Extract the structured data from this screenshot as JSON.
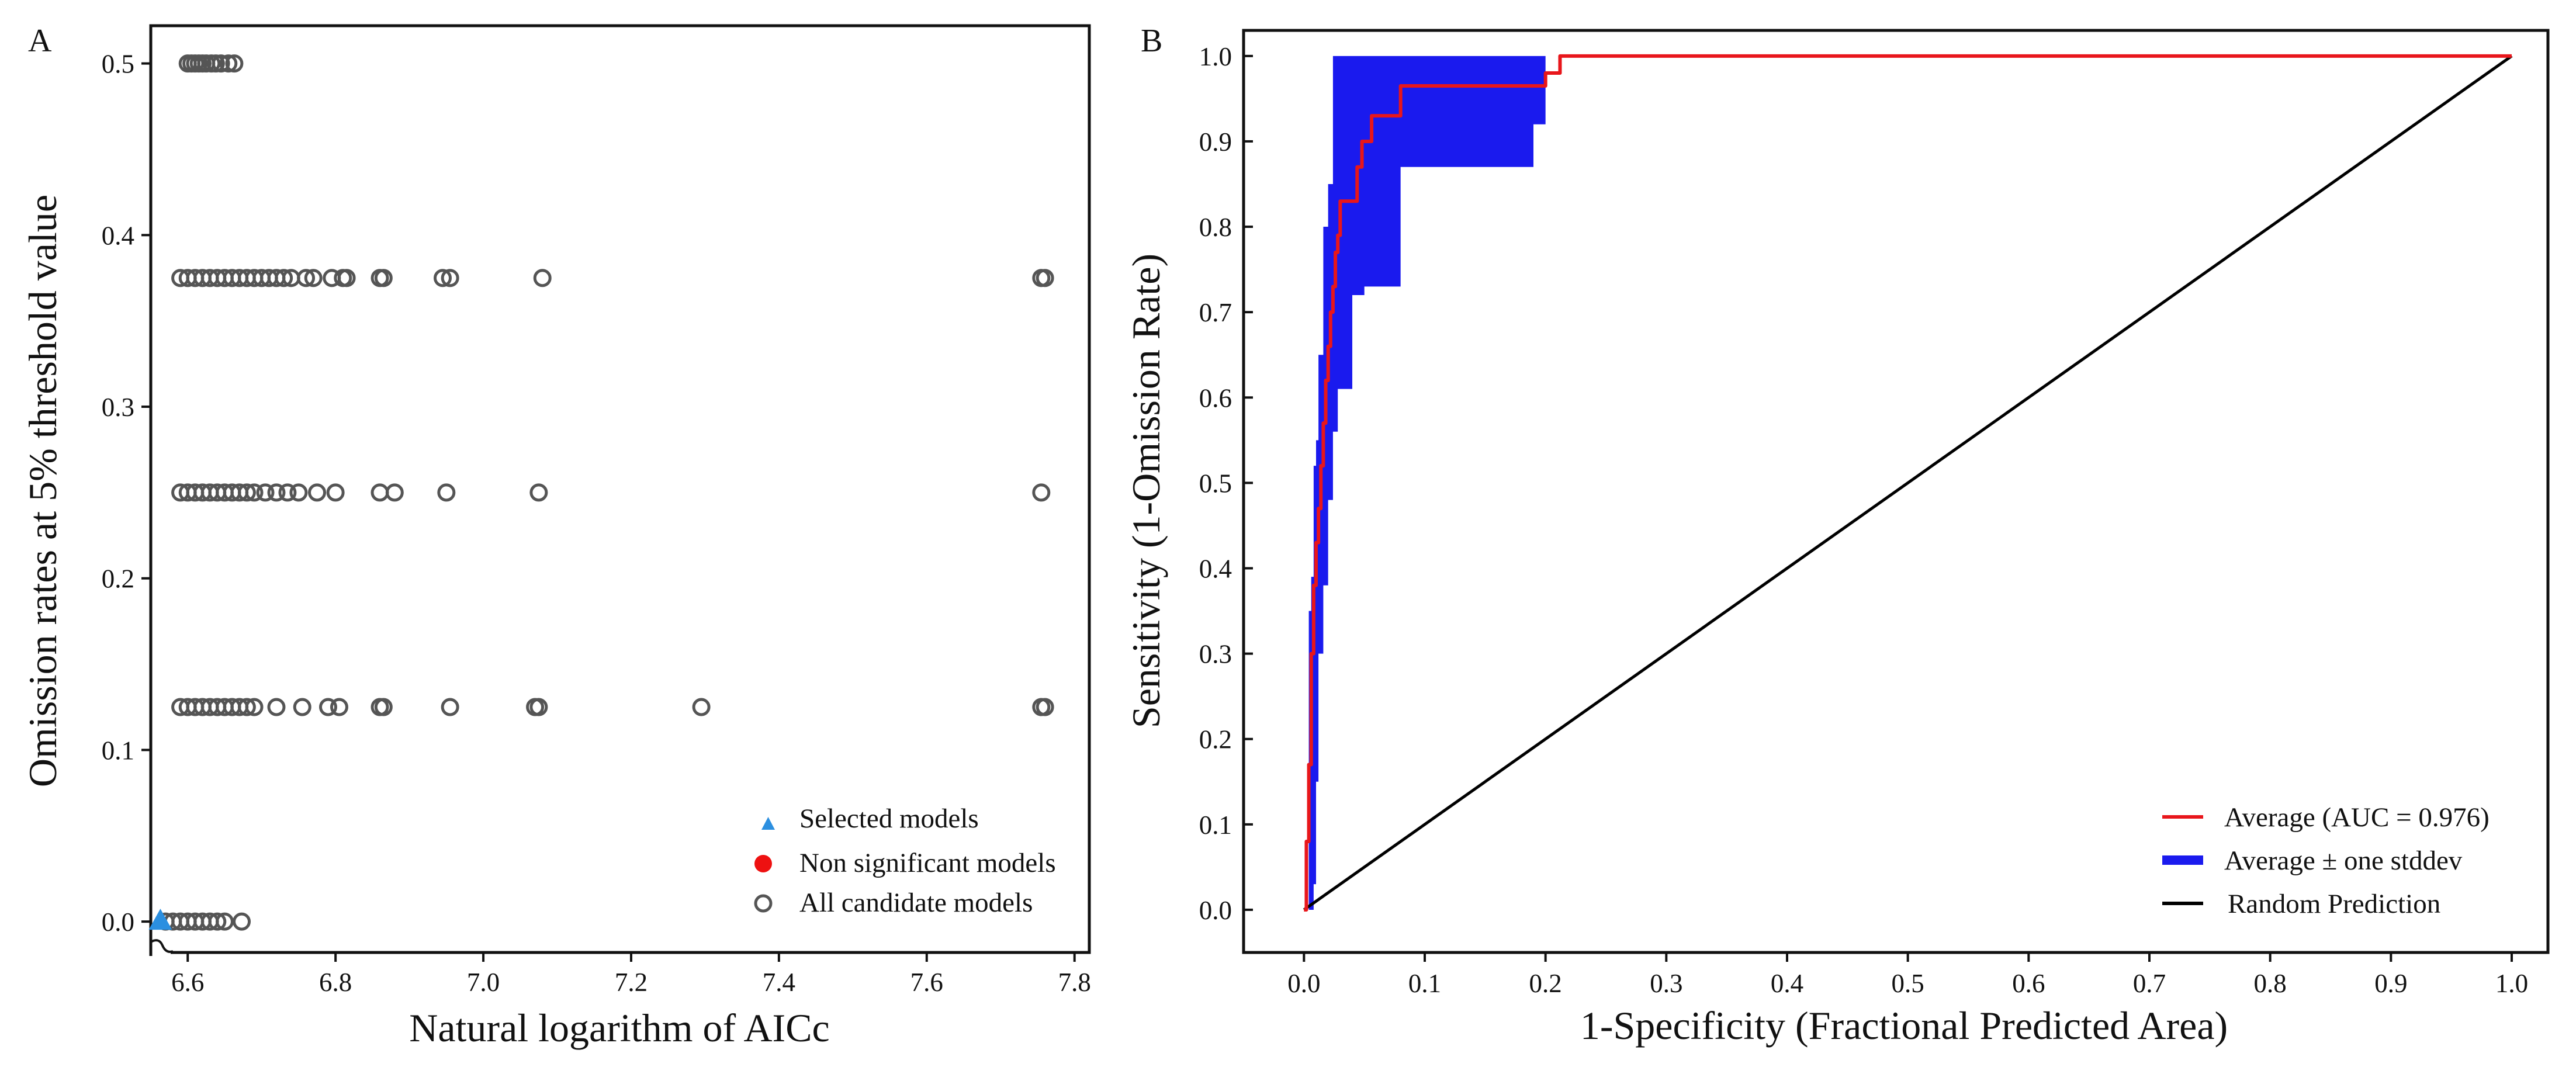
{
  "chart_data": [
    {
      "type": "scatter",
      "panel_label": "A",
      "title": "",
      "xlabel": "Natural logarithm of AICc",
      "ylabel": "Omission rates at 5% threshold value",
      "xlim": [
        6.55,
        7.82
      ],
      "ylim": [
        -0.018,
        0.522
      ],
      "xticks": [
        "6.6",
        "6.8",
        "7.0",
        "7.2",
        "7.4",
        "7.6",
        "7.8"
      ],
      "yticks": [
        "0.0",
        "0.1",
        "0.2",
        "0.3",
        "0.4",
        "0.5"
      ],
      "grid": false,
      "legend_position": "bottom-right",
      "legend": [
        {
          "label": "Selected models",
          "marker": "triangle",
          "color": "#2b8fe0"
        },
        {
          "label": "Non significant models",
          "marker": "filled-circle",
          "color": "#ee1111"
        },
        {
          "label": "All candidate models",
          "marker": "open-circle",
          "color": "#555555"
        }
      ],
      "series": [
        {
          "name": "All candidate models",
          "points": [
            {
              "x": 6.6,
              "y": 0.5
            },
            {
              "x": 6.605,
              "y": 0.5
            },
            {
              "x": 6.61,
              "y": 0.5
            },
            {
              "x": 6.615,
              "y": 0.5
            },
            {
              "x": 6.62,
              "y": 0.5
            },
            {
              "x": 6.625,
              "y": 0.5
            },
            {
              "x": 6.632,
              "y": 0.5
            },
            {
              "x": 6.638,
              "y": 0.5
            },
            {
              "x": 6.645,
              "y": 0.5
            },
            {
              "x": 6.655,
              "y": 0.5
            },
            {
              "x": 6.663,
              "y": 0.5
            },
            {
              "x": 6.59,
              "y": 0.375
            },
            {
              "x": 6.6,
              "y": 0.375
            },
            {
              "x": 6.61,
              "y": 0.375
            },
            {
              "x": 6.62,
              "y": 0.375
            },
            {
              "x": 6.63,
              "y": 0.375
            },
            {
              "x": 6.64,
              "y": 0.375
            },
            {
              "x": 6.65,
              "y": 0.375
            },
            {
              "x": 6.66,
              "y": 0.375
            },
            {
              "x": 6.67,
              "y": 0.375
            },
            {
              "x": 6.68,
              "y": 0.375
            },
            {
              "x": 6.69,
              "y": 0.375
            },
            {
              "x": 6.7,
              "y": 0.375
            },
            {
              "x": 6.71,
              "y": 0.375
            },
            {
              "x": 6.72,
              "y": 0.375
            },
            {
              "x": 6.73,
              "y": 0.375
            },
            {
              "x": 6.74,
              "y": 0.375
            },
            {
              "x": 6.76,
              "y": 0.375
            },
            {
              "x": 6.77,
              "y": 0.375
            },
            {
              "x": 6.795,
              "y": 0.375
            },
            {
              "x": 6.81,
              "y": 0.375
            },
            {
              "x": 6.815,
              "y": 0.375
            },
            {
              "x": 6.86,
              "y": 0.375
            },
            {
              "x": 6.865,
              "y": 0.375
            },
            {
              "x": 6.945,
              "y": 0.375
            },
            {
              "x": 6.955,
              "y": 0.375
            },
            {
              "x": 7.08,
              "y": 0.375
            },
            {
              "x": 7.755,
              "y": 0.375
            },
            {
              "x": 7.76,
              "y": 0.375
            },
            {
              "x": 6.59,
              "y": 0.25
            },
            {
              "x": 6.6,
              "y": 0.25
            },
            {
              "x": 6.61,
              "y": 0.25
            },
            {
              "x": 6.62,
              "y": 0.25
            },
            {
              "x": 6.63,
              "y": 0.25
            },
            {
              "x": 6.64,
              "y": 0.25
            },
            {
              "x": 6.65,
              "y": 0.25
            },
            {
              "x": 6.66,
              "y": 0.25
            },
            {
              "x": 6.67,
              "y": 0.25
            },
            {
              "x": 6.68,
              "y": 0.25
            },
            {
              "x": 6.69,
              "y": 0.25
            },
            {
              "x": 6.705,
              "y": 0.25
            },
            {
              "x": 6.72,
              "y": 0.25
            },
            {
              "x": 6.735,
              "y": 0.25
            },
            {
              "x": 6.75,
              "y": 0.25
            },
            {
              "x": 6.775,
              "y": 0.25
            },
            {
              "x": 6.8,
              "y": 0.25
            },
            {
              "x": 6.86,
              "y": 0.25
            },
            {
              "x": 6.88,
              "y": 0.25
            },
            {
              "x": 6.95,
              "y": 0.25
            },
            {
              "x": 7.075,
              "y": 0.25
            },
            {
              "x": 7.755,
              "y": 0.25
            },
            {
              "x": 6.59,
              "y": 0.125
            },
            {
              "x": 6.6,
              "y": 0.125
            },
            {
              "x": 6.61,
              "y": 0.125
            },
            {
              "x": 6.62,
              "y": 0.125
            },
            {
              "x": 6.63,
              "y": 0.125
            },
            {
              "x": 6.64,
              "y": 0.125
            },
            {
              "x": 6.65,
              "y": 0.125
            },
            {
              "x": 6.66,
              "y": 0.125
            },
            {
              "x": 6.67,
              "y": 0.125
            },
            {
              "x": 6.68,
              "y": 0.125
            },
            {
              "x": 6.69,
              "y": 0.125
            },
            {
              "x": 6.72,
              "y": 0.125
            },
            {
              "x": 6.755,
              "y": 0.125
            },
            {
              "x": 6.79,
              "y": 0.125
            },
            {
              "x": 6.805,
              "y": 0.125
            },
            {
              "x": 6.86,
              "y": 0.125
            },
            {
              "x": 6.865,
              "y": 0.125
            },
            {
              "x": 6.955,
              "y": 0.125
            },
            {
              "x": 7.07,
              "y": 0.125
            },
            {
              "x": 7.075,
              "y": 0.125
            },
            {
              "x": 7.295,
              "y": 0.125
            },
            {
              "x": 7.755,
              "y": 0.125
            },
            {
              "x": 7.76,
              "y": 0.125
            },
            {
              "x": 6.57,
              "y": 0.0
            },
            {
              "x": 6.58,
              "y": 0.0
            },
            {
              "x": 6.59,
              "y": 0.0
            },
            {
              "x": 6.6,
              "y": 0.0
            },
            {
              "x": 6.61,
              "y": 0.0
            },
            {
              "x": 6.62,
              "y": 0.0
            },
            {
              "x": 6.63,
              "y": 0.0
            },
            {
              "x": 6.64,
              "y": 0.0
            },
            {
              "x": 6.65,
              "y": 0.0
            },
            {
              "x": 6.673,
              "y": 0.0
            }
          ]
        },
        {
          "name": "Selected models",
          "points": [
            {
              "x": 6.563,
              "y": 0.0
            }
          ]
        },
        {
          "name": "Non significant models",
          "points": []
        }
      ]
    },
    {
      "type": "line",
      "panel_label": "B",
      "title": "",
      "xlabel": "1-Specificity (Fractional Predicted Area)",
      "ylabel": "Sensitivity  (1-Omission Rate)",
      "xlim": [
        -0.05,
        1.03
      ],
      "ylim": [
        -0.05,
        1.03
      ],
      "xticks": [
        "0.0",
        "0.1",
        "0.2",
        "0.3",
        "0.4",
        "0.5",
        "0.6",
        "0.7",
        "0.8",
        "0.9",
        "1.0"
      ],
      "yticks": [
        "0.0",
        "0.1",
        "0.2",
        "0.3",
        "0.4",
        "0.5",
        "0.6",
        "0.7",
        "0.8",
        "0.9",
        "1.0"
      ],
      "grid": false,
      "legend_position": "bottom-right",
      "legend": [
        {
          "label": "Average (AUC = 0.976)",
          "color": "#e8161b"
        },
        {
          "label": "Average ± one stddev",
          "color": "#1a1aee"
        },
        {
          "label": "Random Prediction",
          "color": "#000000"
        }
      ],
      "series": [
        {
          "name": "Average (AUC = 0.976)",
          "x": [
            0.0,
            0.002,
            0.004,
            0.006,
            0.008,
            0.01,
            0.012,
            0.014,
            0.016,
            0.018,
            0.02,
            0.022,
            0.024,
            0.026,
            0.028,
            0.03,
            0.033,
            0.036,
            0.04,
            0.044,
            0.048,
            0.05,
            0.052,
            0.056,
            0.06,
            0.064,
            0.066,
            0.07,
            0.076,
            0.08,
            0.084,
            0.09,
            0.15,
            0.19,
            0.2,
            0.212,
            0.22,
            0.3,
            0.5,
            0.8,
            1.0
          ],
          "y": [
            0.0,
            0.08,
            0.17,
            0.3,
            0.38,
            0.43,
            0.47,
            0.52,
            0.57,
            0.62,
            0.66,
            0.7,
            0.73,
            0.77,
            0.79,
            0.83,
            0.83,
            0.83,
            0.83,
            0.87,
            0.9,
            0.9,
            0.9,
            0.93,
            0.93,
            0.93,
            0.93,
            0.93,
            0.93,
            0.965,
            0.965,
            0.965,
            0.965,
            0.965,
            0.98,
            1.0,
            1.0,
            1.0,
            1.0,
            1.0,
            1.0
          ]
        },
        {
          "name": "Average ± one stddev",
          "x": [
            0.0,
            0.004,
            0.006,
            0.008,
            0.01,
            0.012,
            0.016,
            0.02,
            0.024,
            0.028,
            0.032,
            0.04,
            0.05,
            0.06,
            0.07,
            0.08,
            0.081,
            0.1,
            0.15,
            0.19,
            0.2,
            0.212
          ],
          "upper": [
            0.0,
            0.35,
            0.39,
            0.52,
            0.55,
            0.65,
            0.8,
            0.85,
            1.0,
            1.0,
            1.0,
            1.0,
            1.0,
            1.0,
            1.0,
            1.0,
            1.0,
            1.0,
            1.0,
            1.0,
            1.0,
            1.0
          ],
          "lower": [
            0.0,
            0.0,
            0.0,
            0.0,
            0.03,
            0.15,
            0.3,
            0.38,
            0.48,
            0.56,
            0.61,
            0.61,
            0.72,
            0.73,
            0.73,
            0.73,
            0.87,
            0.87,
            0.87,
            0.87,
            0.92,
            1.0
          ]
        },
        {
          "name": "Random Prediction",
          "x": [
            0.0,
            1.0
          ],
          "y": [
            0.0,
            1.0
          ]
        }
      ]
    }
  ]
}
